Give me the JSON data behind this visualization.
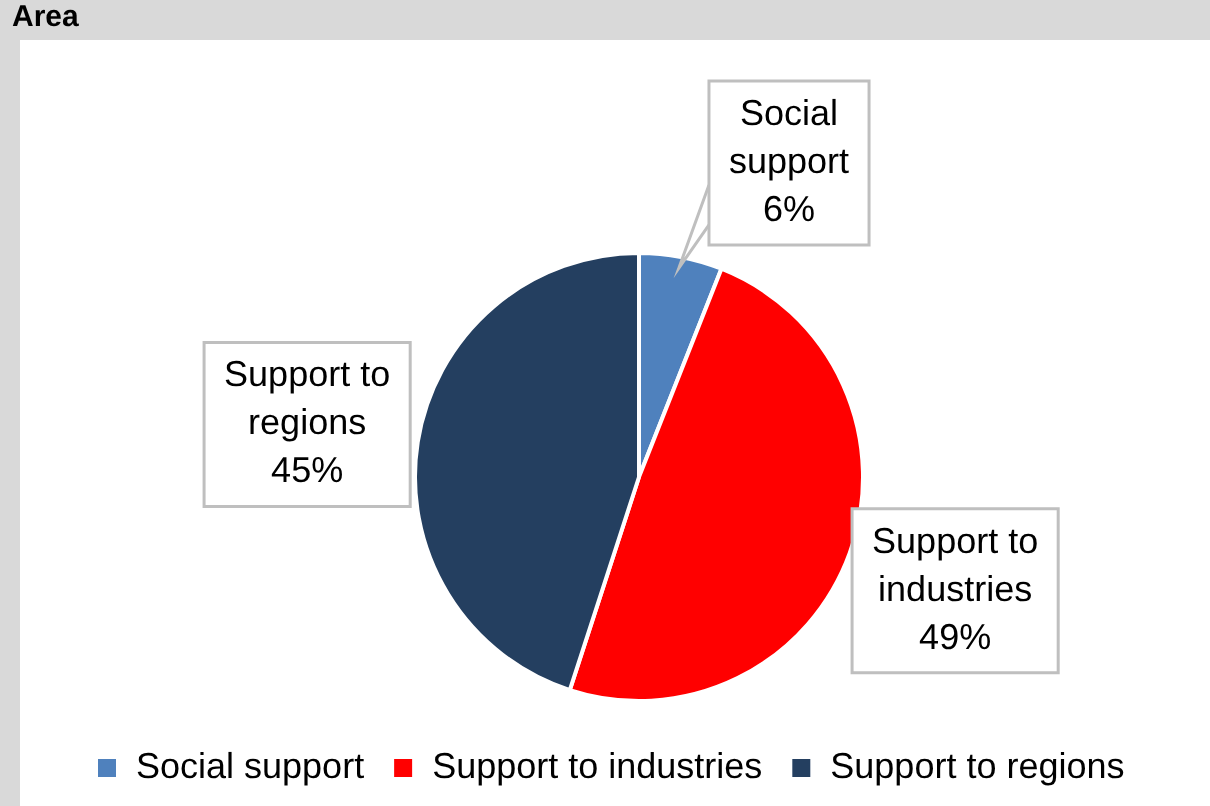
{
  "chart_data": {
    "type": "pie",
    "title": "Area",
    "categories": [
      "Social support",
      "Support to industries",
      "Support to regions"
    ],
    "values": [
      6,
      49,
      45
    ],
    "colors": [
      "#4f81bd",
      "#ff0000",
      "#243f60"
    ],
    "value_labels": [
      "6%",
      "49%",
      "45%"
    ],
    "legend": "bottom"
  }
}
